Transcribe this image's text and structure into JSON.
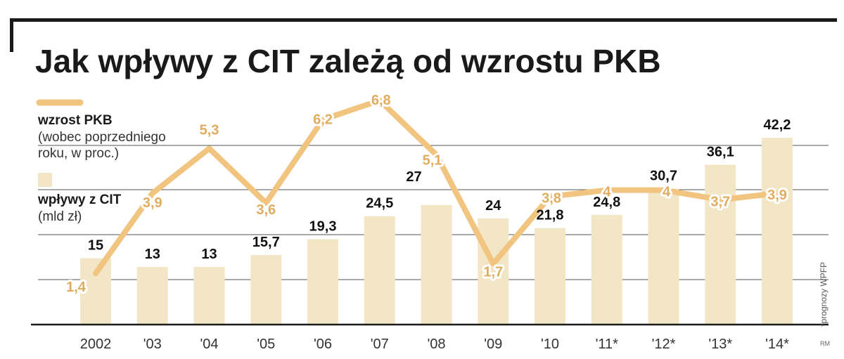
{
  "chart_data": {
    "type": "bar",
    "title": "Jak wpływy z CIT zależą od wzrostu PKB",
    "categories": [
      "2002",
      "'03",
      "'04",
      "'05",
      "'06",
      "'07",
      "'08",
      "'09",
      "'10",
      "'11*",
      "'12*",
      "'13*",
      "'14*"
    ],
    "series": [
      {
        "name": "wpływy z CIT",
        "unit": "(mld zł)",
        "kind": "bar",
        "values": [
          15,
          13,
          13,
          15.7,
          19.3,
          24.5,
          27,
          24,
          21.8,
          24.8,
          30.7,
          36.1,
          42.2
        ],
        "labels": [
          "15",
          "13",
          "13",
          "15,7",
          "19,3",
          "24,5",
          "27",
          "24",
          "21,8",
          "24,8",
          "30,7",
          "36,1",
          "42,2"
        ]
      },
      {
        "name": "wzrost PKB",
        "unit_lines": [
          "(wobec poprzedniego",
          "roku, w proc.)"
        ],
        "kind": "line",
        "values": [
          1.4,
          3.9,
          5.3,
          3.6,
          6.2,
          6.8,
          5.1,
          1.7,
          3.8,
          4,
          4,
          3.7,
          3.9
        ],
        "labels": [
          "1,4",
          "3,9",
          "5,3",
          "3,6",
          "6,2",
          "6,8",
          "5,1",
          "1,7",
          "3,8",
          "4",
          "4",
          "3,7",
          "3,9"
        ]
      }
    ],
    "bar_ylim": [
      0,
      45
    ],
    "line_ylim": [
      0,
      8
    ],
    "grid": true,
    "legend": "top-left",
    "note": "*prognozy WPFP",
    "credit": "RM",
    "colors": {
      "bar": "#f3e6c6",
      "line": "#f1c47f",
      "line_label": "#e0ad60",
      "frame": "#1a1a1a",
      "grid": "#555555"
    }
  }
}
